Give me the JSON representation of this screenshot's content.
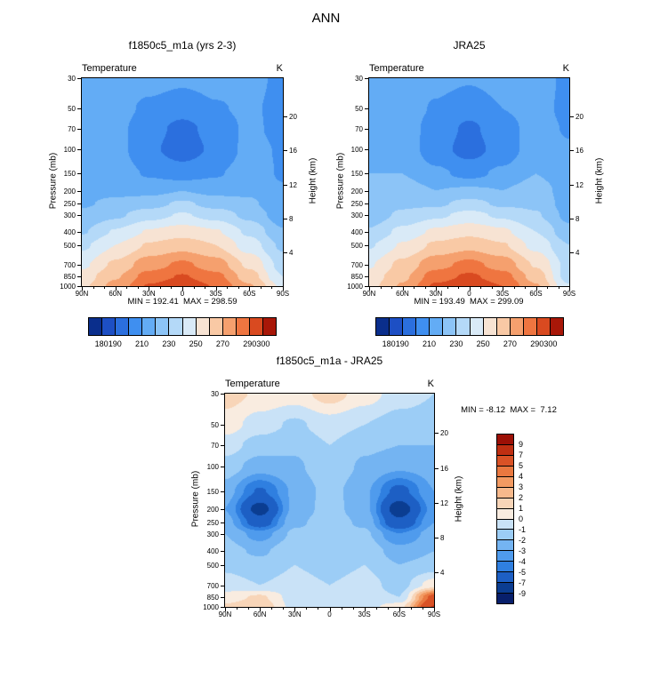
{
  "page_title": "ANN",
  "chart_data": [
    {
      "type": "heatmap",
      "title": "f1850c5_m1a (yrs 2-3)",
      "variable": "Temperature",
      "units": "K",
      "stats": "MIN = 192.41  MAX = 298.59",
      "x_axis": {
        "ticks": [
          "90N",
          "60N",
          "30N",
          "0",
          "30S",
          "60S",
          "90S"
        ],
        "values_deg": [
          90,
          60,
          30,
          0,
          -30,
          -60,
          -90
        ]
      },
      "y_axis_left": {
        "label": "Pressure (mb)",
        "scale": "log",
        "range": [
          30,
          1000
        ],
        "ticks": [
          30,
          50,
          70,
          100,
          150,
          200,
          250,
          300,
          400,
          500,
          700,
          850,
          1000
        ]
      },
      "y_axis_right": {
        "label": "Height (km)",
        "ticks": [
          20,
          16,
          12,
          8,
          4
        ]
      },
      "levels": [
        180,
        190,
        200,
        210,
        220,
        230,
        240,
        250,
        260,
        270,
        280,
        290,
        300
      ],
      "colorbar_tick_labels": [
        "180",
        "190",
        "210",
        "230",
        "250",
        "270",
        "290",
        "300"
      ],
      "colorbar_tick_level_index": [
        0,
        1,
        3,
        5,
        7,
        9,
        11,
        12
      ],
      "palette": [
        "#0a2e8c",
        "#1d4fc4",
        "#2b6fde",
        "#3f8ff0",
        "#63acf5",
        "#8cc4f7",
        "#b4d9f8",
        "#d9eaf7",
        "#f7e3d3",
        "#f9c9a5",
        "#f5a06e",
        "#ef7540",
        "#d94a20",
        "#a81708"
      ],
      "grid": {
        "lat": [
          90,
          60,
          30,
          0,
          -30,
          -60,
          -90
        ],
        "pressure": [
          30,
          50,
          70,
          100,
          150,
          200,
          250,
          300,
          400,
          500,
          700,
          850,
          1000
        ],
        "values": [
          [
            219,
            217,
            214,
            212,
            214,
            214,
            207
          ],
          [
            217,
            214,
            208,
            204,
            209,
            212,
            206
          ],
          [
            216,
            213,
            204,
            197,
            204,
            212,
            207
          ],
          [
            217,
            214,
            202,
            195,
            202,
            213,
            209
          ],
          [
            217,
            215,
            209,
            205,
            209,
            215,
            209
          ],
          [
            218,
            218,
            217,
            220,
            217,
            218,
            211
          ],
          [
            219,
            222,
            226,
            232,
            226,
            222,
            212
          ],
          [
            222,
            228,
            236,
            241,
            236,
            227,
            214
          ],
          [
            229,
            241,
            251,
            255,
            251,
            238,
            221
          ],
          [
            238,
            250,
            261,
            266,
            260,
            245,
            228
          ],
          [
            248,
            262,
            276,
            282,
            275,
            258,
            236
          ],
          [
            254,
            269,
            284,
            291,
            283,
            265,
            240
          ],
          [
            258,
            273,
            291,
            298,
            289,
            271,
            248
          ]
        ]
      }
    },
    {
      "type": "heatmap",
      "title": "JRA25",
      "variable": "Temperature",
      "units": "K",
      "stats": "MIN = 193.49  MAX = 299.09",
      "x_axis": {
        "ticks": [
          "90N",
          "60N",
          "30N",
          "0",
          "30S",
          "60S",
          "90S"
        ],
        "values_deg": [
          90,
          60,
          30,
          0,
          -30,
          -60,
          -90
        ]
      },
      "y_axis_left": {
        "label": "Pressure (mb)",
        "scale": "log",
        "range": [
          30,
          1000
        ],
        "ticks": [
          30,
          50,
          70,
          100,
          150,
          200,
          250,
          300,
          400,
          500,
          700,
          850,
          1000
        ]
      },
      "y_axis_right": {
        "label": "Height (km)",
        "ticks": [
          20,
          16,
          12,
          8,
          4
        ]
      },
      "levels": [
        180,
        190,
        200,
        210,
        220,
        230,
        240,
        250,
        260,
        270,
        280,
        290,
        300
      ],
      "colorbar_tick_labels": [
        "180",
        "190",
        "210",
        "230",
        "250",
        "270",
        "290",
        "300"
      ],
      "colorbar_tick_level_index": [
        0,
        1,
        3,
        5,
        7,
        9,
        11,
        12
      ],
      "palette": [
        "#0a2e8c",
        "#1d4fc4",
        "#2b6fde",
        "#3f8ff0",
        "#63acf5",
        "#8cc4f7",
        "#b4d9f8",
        "#d9eaf7",
        "#f7e3d3",
        "#f9c9a5",
        "#f5a06e",
        "#ef7540",
        "#d94a20",
        "#a81708"
      ],
      "grid": {
        "lat": [
          90,
          60,
          30,
          0,
          -30,
          -60,
          -90
        ],
        "pressure": [
          30,
          50,
          70,
          100,
          150,
          200,
          250,
          300,
          400,
          500,
          700,
          850,
          1000
        ],
        "values": [
          [
            218,
            216,
            213,
            211,
            214,
            214,
            208
          ],
          [
            217,
            215,
            209,
            204,
            210,
            214,
            207
          ],
          [
            217,
            215,
            206,
            198,
            206,
            214,
            209
          ],
          [
            219,
            217,
            204,
            196,
            204,
            216,
            211
          ],
          [
            220,
            220,
            212,
            207,
            212,
            220,
            212
          ],
          [
            221,
            226,
            220,
            222,
            220,
            226,
            214
          ],
          [
            222,
            228,
            228,
            234,
            228,
            228,
            215
          ],
          [
            224,
            232,
            238,
            243,
            238,
            231,
            217
          ],
          [
            231,
            243,
            252,
            257,
            252,
            240,
            223
          ],
          [
            239,
            251,
            262,
            267,
            261,
            247,
            230
          ],
          [
            249,
            263,
            277,
            283,
            276,
            259,
            236
          ],
          [
            254,
            268,
            285,
            292,
            284,
            266,
            235
          ],
          [
            257,
            271,
            292,
            299,
            290,
            271,
            241
          ]
        ]
      }
    },
    {
      "type": "heatmap",
      "title": "f1850c5_m1a - JRA25",
      "variable": "Temperature",
      "units": "K",
      "stats": "MIN = -8.12  MAX =  7.12",
      "x_axis": {
        "ticks": [
          "90N",
          "60N",
          "30N",
          "0",
          "30S",
          "60S",
          "90S"
        ],
        "values_deg": [
          90,
          60,
          30,
          0,
          -30,
          -60,
          -90
        ]
      },
      "y_axis_left": {
        "label": "Pressure (mb)",
        "scale": "log",
        "range": [
          30,
          1000
        ],
        "ticks": [
          30,
          50,
          70,
          100,
          150,
          200,
          250,
          300,
          400,
          500,
          700,
          850,
          1000
        ]
      },
      "y_axis_right": {
        "label": "Height (km)",
        "ticks": [
          20,
          16,
          12,
          8,
          4
        ]
      },
      "levels": [
        -9,
        -7,
        -5,
        -4,
        -3,
        -2,
        -1,
        0,
        1,
        2,
        3,
        4,
        5,
        7,
        9
      ],
      "colorbar_tick_labels": [
        "9",
        "7",
        "5",
        "4",
        "3",
        "2",
        "1",
        "0",
        "-1",
        "-2",
        "-3",
        "-4",
        "-5",
        "-7",
        "-9"
      ],
      "palette": [
        "#081f6b",
        "#0b3d91",
        "#1d5fc4",
        "#2f7fe0",
        "#4f9bed",
        "#74b4f2",
        "#9ccdf6",
        "#c9e2f7",
        "#f9ece0",
        "#f8d5b8",
        "#f7b98c",
        "#f29a62",
        "#e97840",
        "#d95226",
        "#bf2f12",
        "#9c1006"
      ],
      "grid": {
        "lat": [
          90,
          60,
          30,
          0,
          -30,
          -60,
          -90
        ],
        "pressure": [
          30,
          50,
          70,
          100,
          150,
          200,
          250,
          300,
          400,
          500,
          700,
          850,
          1000
        ],
        "values": [
          [
            1.5,
            0.8,
            0.5,
            1.5,
            0.5,
            -0.5,
            -1.0
          ],
          [
            0.5,
            -0.5,
            -1.2,
            -0.5,
            -1.0,
            -1.5,
            -1.5
          ],
          [
            -0.5,
            -1.5,
            -1.8,
            -1.0,
            -1.8,
            -2.0,
            -2.0
          ],
          [
            -1.5,
            -2.5,
            -2.2,
            -1.2,
            -2.2,
            -2.8,
            -2.5
          ],
          [
            -2.5,
            -5.2,
            -2.8,
            -1.6,
            -2.8,
            -5.5,
            -3.0
          ],
          [
            -3.0,
            -7.8,
            -2.6,
            -1.6,
            -2.6,
            -8.1,
            -3.5
          ],
          [
            -2.5,
            -6.0,
            -2.2,
            -1.5,
            -2.2,
            -6.5,
            -3.0
          ],
          [
            -2.0,
            -3.5,
            -1.8,
            -1.5,
            -1.8,
            -4.0,
            -2.5
          ],
          [
            -1.6,
            -2.2,
            -1.2,
            -1.5,
            -1.2,
            -2.6,
            -2.0
          ],
          [
            -1.2,
            -1.6,
            -1.0,
            -1.4,
            -1.0,
            -2.0,
            -1.6
          ],
          [
            -0.6,
            -1.0,
            -0.6,
            -1.0,
            -0.6,
            -1.4,
            0.5
          ],
          [
            0.5,
            1.2,
            -0.5,
            -0.8,
            -0.5,
            -1.0,
            5.5
          ],
          [
            1.2,
            1.8,
            -0.4,
            -0.5,
            -0.4,
            0.6,
            7.1
          ]
        ]
      }
    }
  ]
}
